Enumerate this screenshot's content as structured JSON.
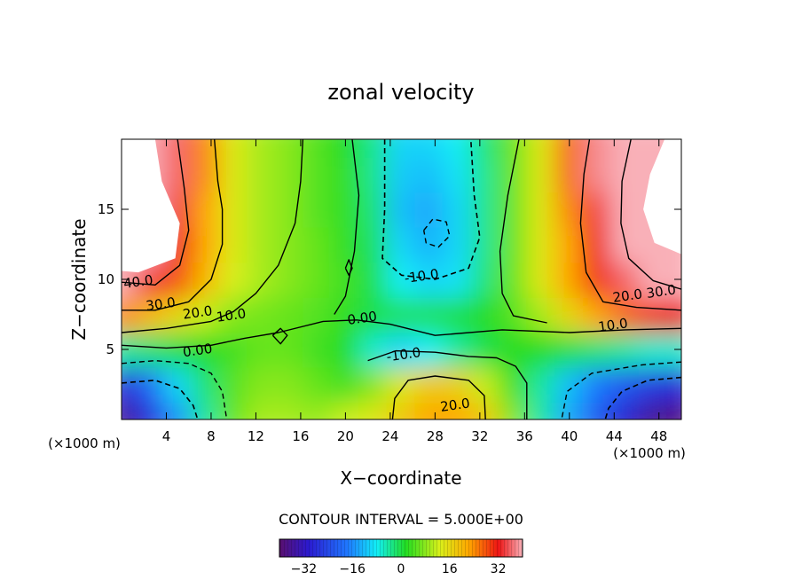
{
  "chart_data": {
    "type": "heatmap",
    "title": "zonal velocity",
    "xlabel": "X−coordinate",
    "ylabel": "Z−coordinate",
    "x_unit_left": "(×1000 m)",
    "x_unit_right": "(×1000 m)",
    "xlim": [
      0,
      50
    ],
    "ylim": [
      0,
      20
    ],
    "x_ticks": [
      4,
      8,
      12,
      16,
      20,
      24,
      28,
      32,
      36,
      40,
      44,
      48
    ],
    "y_ticks": [
      5,
      10,
      15
    ],
    "x_tick_labels": [
      "4",
      "8",
      "12",
      "16",
      "20",
      "24",
      "28",
      "32",
      "36",
      "40",
      "44",
      "48"
    ],
    "y_tick_labels": [
      "5",
      "10",
      "15"
    ],
    "contour_interval_text": "CONTOUR INTERVAL = 5.000E+00",
    "colorbar": {
      "range": [
        -40,
        40
      ],
      "ticks": [
        -32,
        -16,
        0,
        16,
        32
      ],
      "tick_labels": [
        "−32",
        "−16",
        "0",
        "16",
        "32"
      ]
    },
    "contour_labels": [
      {
        "text": "40.0",
        "x": 1.5,
        "z": 9.8
      },
      {
        "text": "30.0",
        "x": 3.5,
        "z": 8.2
      },
      {
        "text": "20.0",
        "x": 6.8,
        "z": 7.6
      },
      {
        "text": "10.0",
        "x": 9.8,
        "z": 7.4
      },
      {
        "text": "0.00",
        "x": 6.8,
        "z": 4.9
      },
      {
        "text": "0.00",
        "x": 21.5,
        "z": 7.2
      },
      {
        "text": "-10.0",
        "x": 26.8,
        "z": 10.2
      },
      {
        "text": "-10.0",
        "x": 25.2,
        "z": 4.6
      },
      {
        "text": "20.0",
        "x": 29.8,
        "z": 1.0
      },
      {
        "text": "20.0",
        "x": 45.2,
        "z": 8.8
      },
      {
        "text": "30.0",
        "x": 48.2,
        "z": 9.1
      },
      {
        "text": "10.0",
        "x": 43.9,
        "z": 6.7
      }
    ],
    "values": {
      "description_of_grid": "sampled zonal velocity field u(x,z), columns x = 0..50 step 2.5 (x1000 m), rows z = 0..20 step 2.5 (x1000 m)",
      "x": [
        0,
        2.5,
        5,
        7.5,
        10,
        12.5,
        15,
        17.5,
        20,
        22.5,
        25,
        27.5,
        30,
        32.5,
        35,
        37.5,
        40,
        42.5,
        45,
        47.5,
        50
      ],
      "z": [
        0,
        2.5,
        5,
        7.5,
        10,
        12.5,
        15,
        17.5,
        20
      ],
      "u": [
        [
          -36,
          -28,
          -16,
          -4,
          6,
          10,
          10,
          9,
          12,
          14,
          18,
          22,
          22,
          18,
          8,
          -4,
          -14,
          -22,
          -30,
          -36,
          -38
        ],
        [
          -28,
          -20,
          -10,
          -2,
          5,
          8,
          8,
          6,
          4,
          8,
          14,
          18,
          17,
          12,
          4,
          -4,
          -12,
          -18,
          -22,
          -26,
          -28
        ],
        [
          -4,
          -2,
          0,
          2,
          4,
          6,
          6,
          4,
          2,
          -6,
          -10,
          -8,
          -4,
          0,
          2,
          2,
          0,
          -2,
          -4,
          -6,
          -6
        ],
        [
          24,
          20,
          16,
          12,
          8,
          7,
          6,
          5,
          3,
          0,
          -1,
          -1,
          0,
          2,
          5,
          10,
          16,
          22,
          26,
          30,
          32
        ],
        [
          44,
          34,
          28,
          20,
          13,
          10,
          8,
          6,
          4,
          0,
          -8,
          -10,
          -9,
          -2,
          6,
          14,
          22,
          30,
          36,
          40,
          42
        ],
        [
          46,
          44,
          32,
          22,
          14,
          10,
          8,
          6,
          3,
          -1,
          -10,
          -13,
          -10,
          -3,
          6,
          14,
          22,
          32,
          40,
          44,
          46
        ],
        [
          46,
          46,
          34,
          22,
          14,
          10,
          8,
          5,
          3,
          -2,
          -12,
          -14,
          -10,
          -3,
          6,
          14,
          24,
          34,
          42,
          46,
          46
        ],
        [
          46,
          42,
          36,
          24,
          14,
          10,
          8,
          5,
          3,
          -3,
          -11,
          -12,
          -9,
          -3,
          6,
          14,
          26,
          38,
          42,
          46,
          46
        ],
        [
          46,
          40,
          36,
          24,
          14,
          10,
          8,
          5,
          2,
          -3,
          -10,
          -10,
          -8,
          -2,
          6,
          14,
          26,
          38,
          42,
          46,
          46
        ]
      ]
    }
  }
}
